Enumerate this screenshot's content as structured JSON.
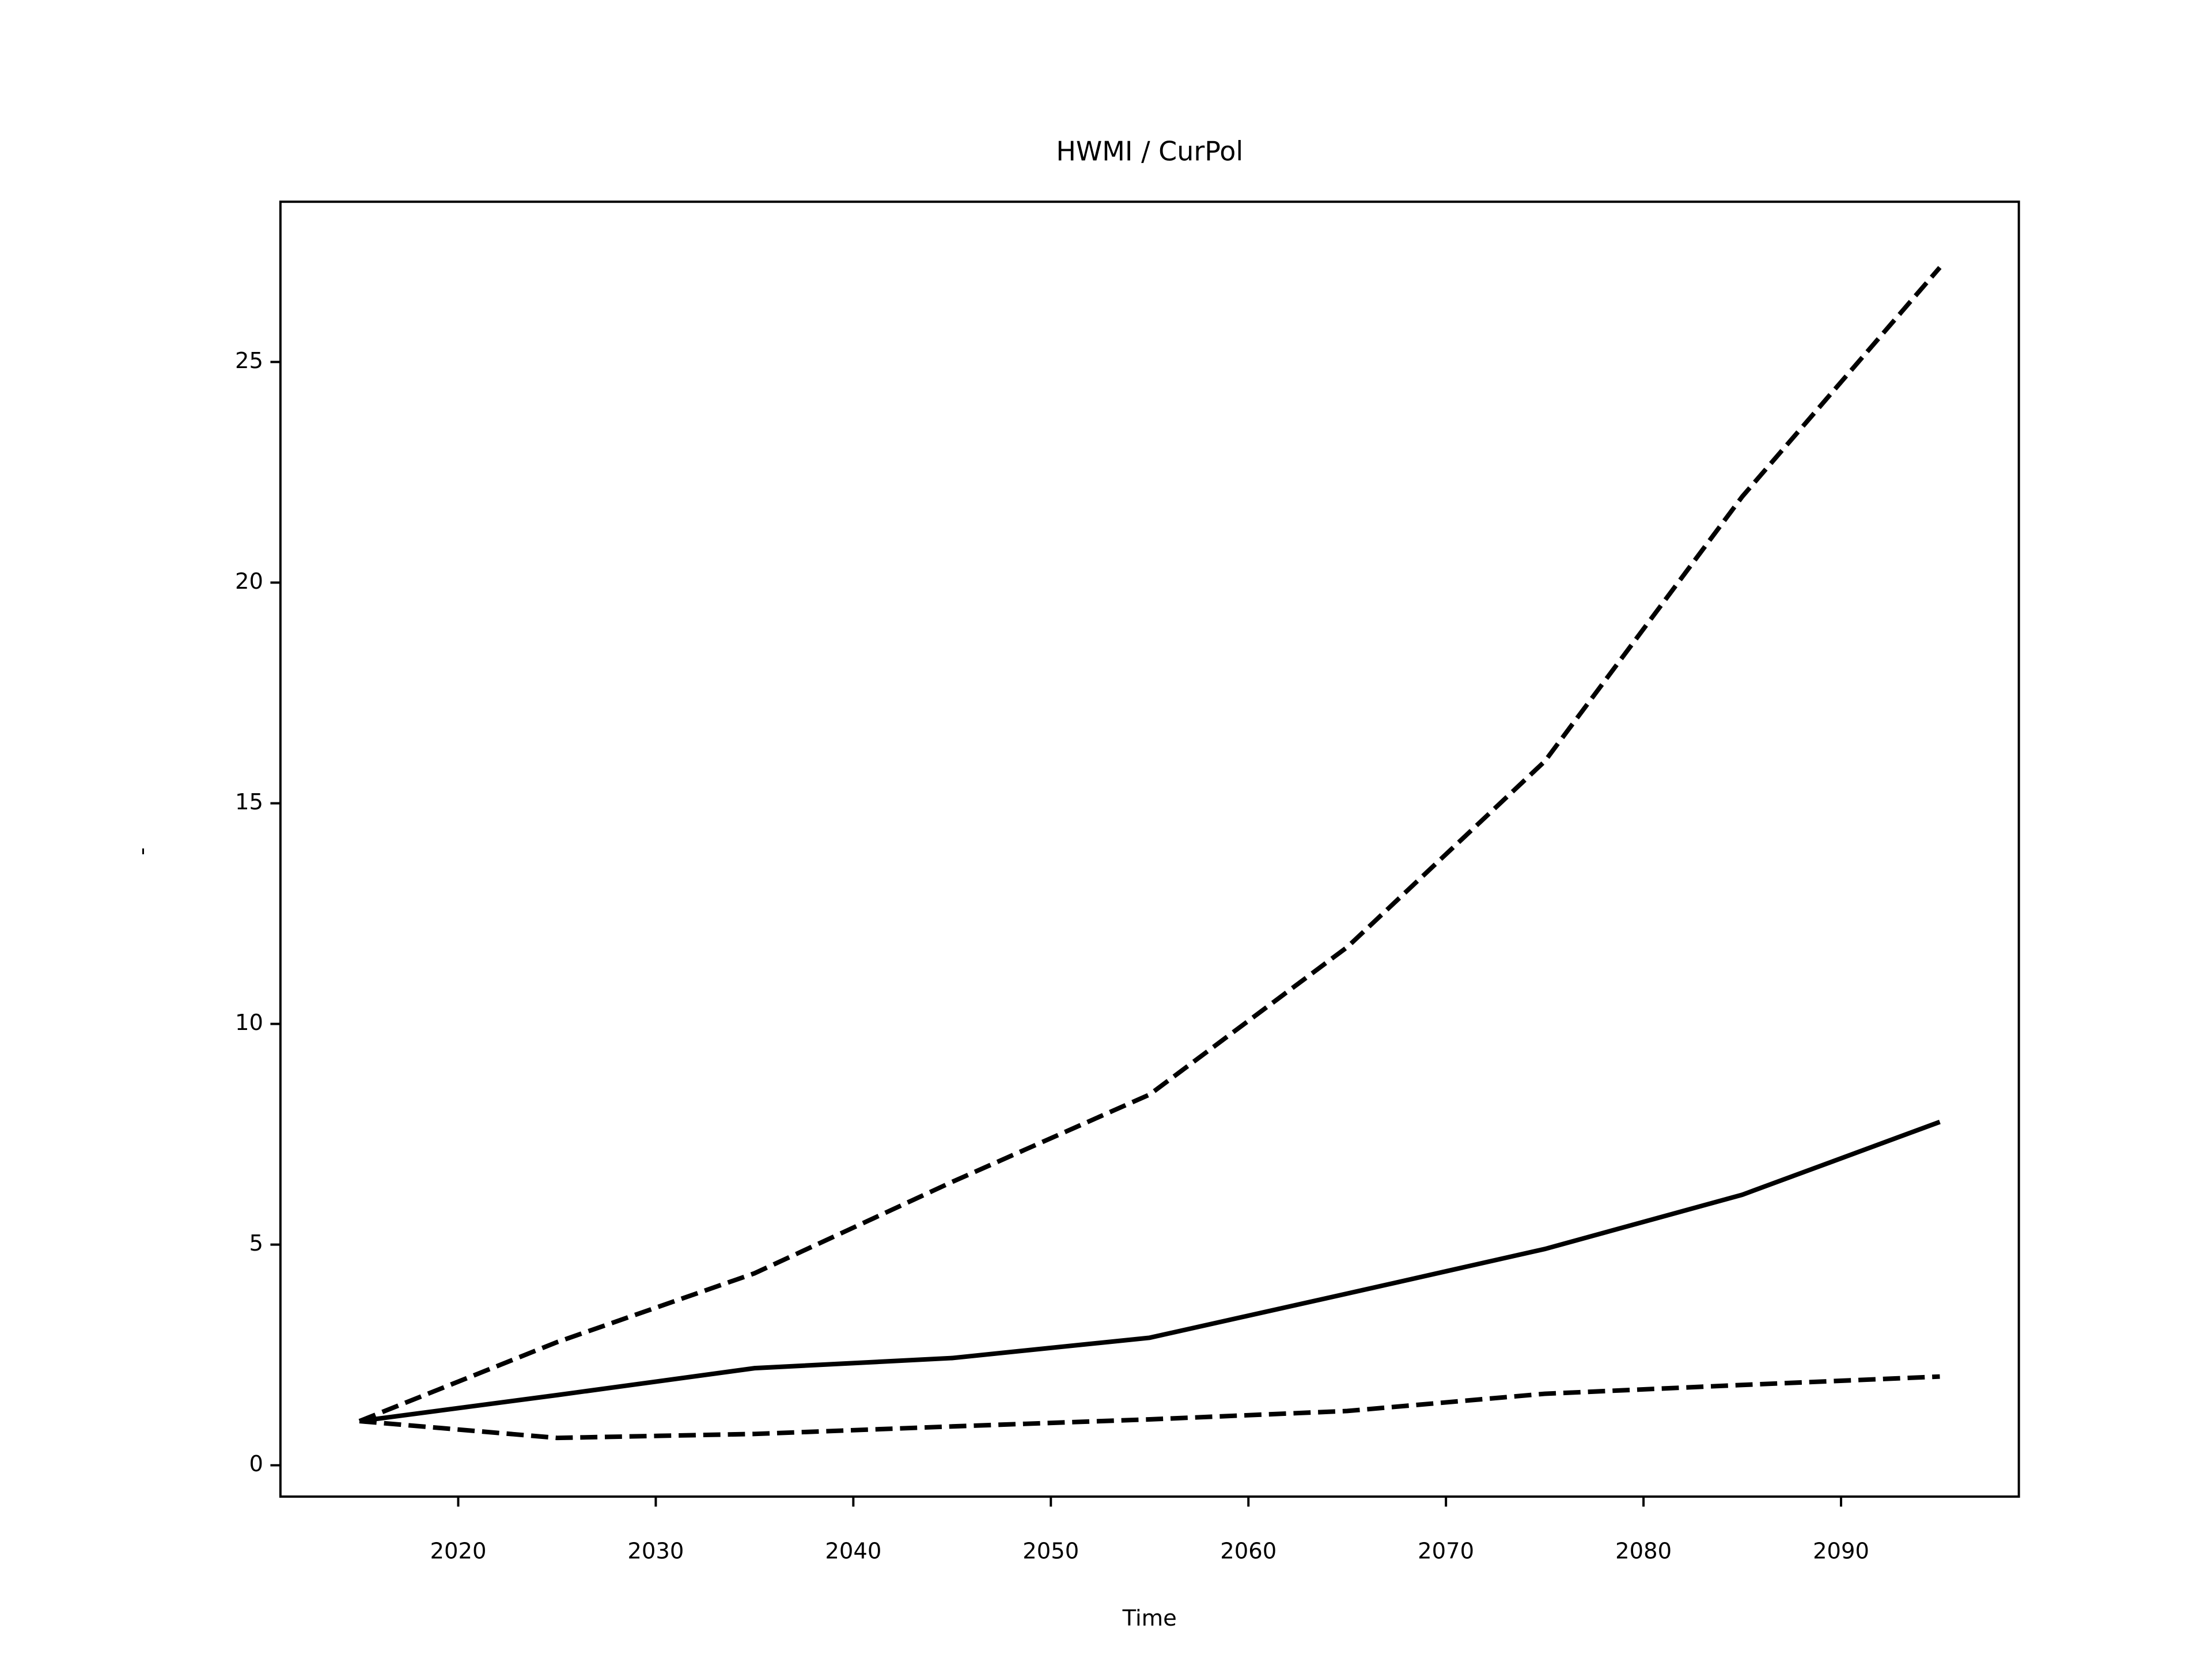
{
  "chart_data": {
    "type": "line",
    "title": "HWMI / CurPol",
    "xlabel": "Time",
    "ylabel": "-",
    "x": [
      2015,
      2025,
      2035,
      2045,
      2055,
      2065,
      2075,
      2085,
      2095
    ],
    "series": [
      {
        "color": "#000000",
        "linestyle": "dashed",
        "values": [
          1.0,
          2.79,
          4.35,
          6.42,
          8.4,
          11.74,
          15.95,
          21.95,
          27.14
        ]
      },
      {
        "color": "#000000",
        "linestyle": "solid",
        "values": [
          1.0,
          1.59,
          2.2,
          2.43,
          2.89,
          3.89,
          4.9,
          6.13,
          7.78
        ]
      },
      {
        "color": "#000000",
        "linestyle": "dashed",
        "values": [
          1.0,
          0.62,
          0.71,
          0.88,
          1.04,
          1.23,
          1.62,
          1.82,
          2.01
        ]
      }
    ],
    "xlim": [
      2011,
      2099
    ],
    "xticks": [
      2020,
      2030,
      2040,
      2050,
      2060,
      2070,
      2080,
      2090
    ],
    "ylim": [
      -0.71,
      28.63
    ],
    "yticks": [
      0,
      5,
      10,
      15,
      20,
      25
    ],
    "grid": false
  }
}
